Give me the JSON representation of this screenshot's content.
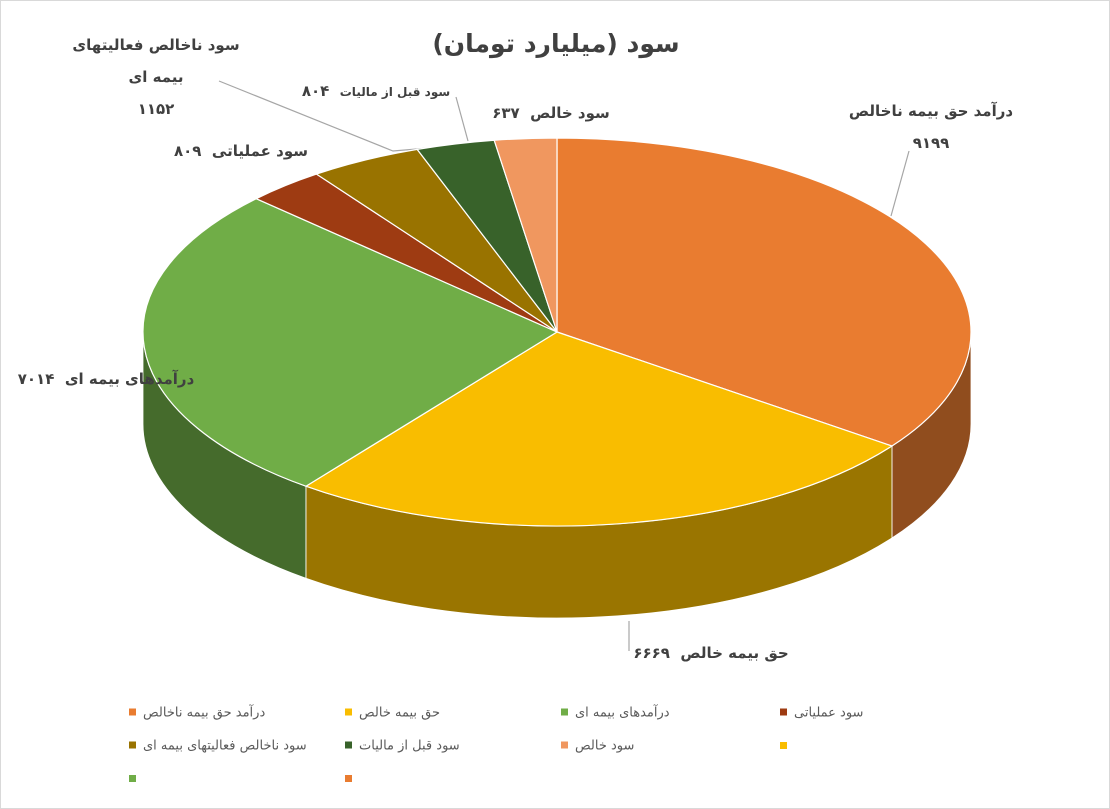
{
  "chart_data": {
    "type": "pie",
    "title": "سود (میلیارد تومان)",
    "categories": [
      "درآمد حق بیمه ناخالص",
      "حق بیمه خالص",
      "درآمدهای بیمه ای",
      "سود  عملیاتی",
      "سود  ناخالص فعالیتهای بیمه ای",
      "سود قبل از مالیات",
      "سود  خالص"
    ],
    "values": [
      9199,
      6669,
      7014,
      809,
      1152,
      804,
      637
    ],
    "value_labels": [
      "۹۱۹۹",
      "۶۶۶۹",
      "۷۰۱۴",
      "۸۰۹",
      "۱۱۵۲",
      "۸۰۴",
      "۶۳۷"
    ],
    "colors": [
      "#e97c30",
      "#f9bd00",
      "#70ad47",
      "#9e3b12",
      "#997300",
      "#38622a",
      "#f0975f"
    ],
    "legend": "bottom"
  }
}
